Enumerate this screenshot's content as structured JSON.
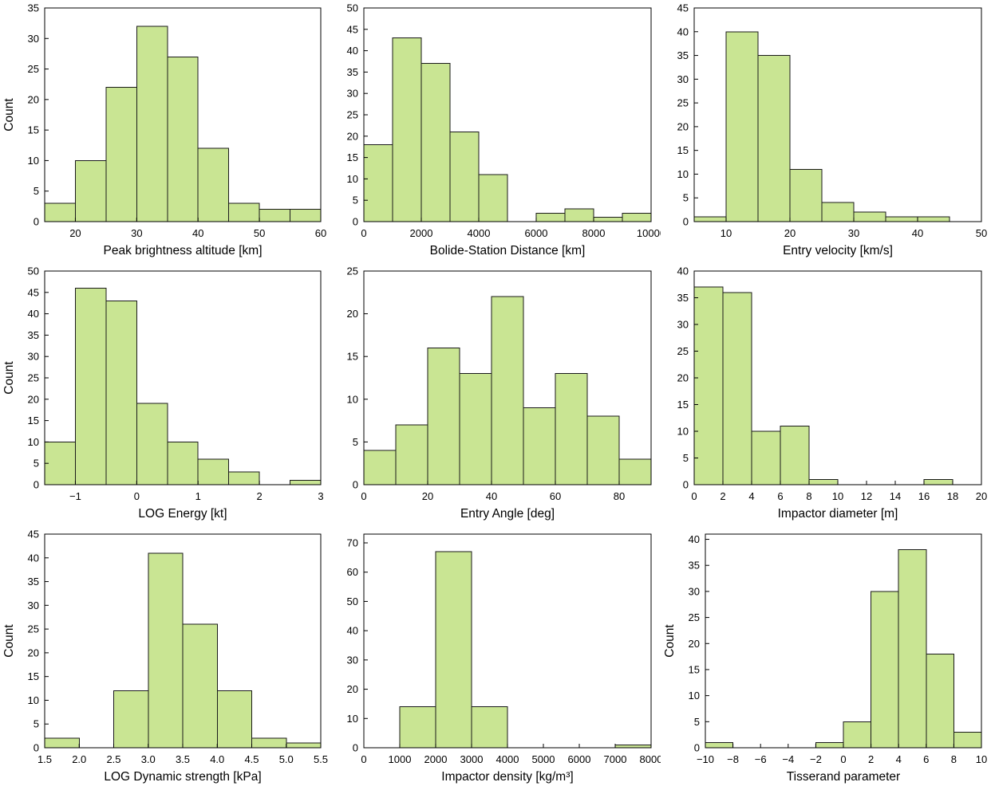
{
  "style": {
    "background": "#ffffff",
    "bar_fill": "#c9e593",
    "bar_stroke": "#1a1a1a",
    "axis_color": "#000000",
    "text_color": "#000000"
  },
  "chart_data": [
    {
      "type": "bar",
      "name": "peak-brightness-altitude",
      "title": "",
      "xlabel": "Peak brightness altitude [km]",
      "ylabel": "Count",
      "bin_start": 15,
      "bin_width": 5,
      "values": [
        3,
        10,
        22,
        32,
        27,
        12,
        3,
        2,
        2
      ],
      "xlim": [
        15,
        60
      ],
      "ylim": [
        0,
        35
      ],
      "xticks": [
        20,
        30,
        40,
        50,
        60
      ],
      "xtick_labels": [
        "20",
        "30",
        "40",
        "50",
        "60"
      ],
      "yticks": [
        0,
        5,
        10,
        15,
        20,
        25,
        30,
        35
      ],
      "grid": false,
      "legend": false
    },
    {
      "type": "bar",
      "name": "bolide-station-distance",
      "title": "",
      "xlabel": "Bolide-Station Distance [km]",
      "ylabel": "",
      "bin_start": 0,
      "bin_width": 1000,
      "values": [
        18,
        43,
        37,
        21,
        11,
        0,
        2,
        3,
        1,
        2
      ],
      "xlim": [
        0,
        10000
      ],
      "ylim": [
        0,
        50
      ],
      "xticks": [
        0,
        2000,
        4000,
        6000,
        8000,
        10000
      ],
      "xtick_labels": [
        "0",
        "2000",
        "4000",
        "6000",
        "8000",
        "10000"
      ],
      "yticks": [
        0,
        5,
        10,
        15,
        20,
        25,
        30,
        35,
        40,
        45,
        50
      ],
      "grid": false,
      "legend": false
    },
    {
      "type": "bar",
      "name": "entry-velocity",
      "title": "",
      "xlabel": "Entry velocity [km/s]",
      "ylabel": "",
      "bin_start": 5,
      "bin_width": 5,
      "values": [
        1,
        40,
        35,
        11,
        4,
        2,
        1,
        1,
        0
      ],
      "xlim": [
        5,
        50
      ],
      "ylim": [
        0,
        45
      ],
      "xticks": [
        10,
        20,
        30,
        40,
        50
      ],
      "xtick_labels": [
        "10",
        "20",
        "30",
        "40",
        "50"
      ],
      "yticks": [
        0,
        5,
        10,
        15,
        20,
        25,
        30,
        35,
        40,
        45
      ],
      "grid": false,
      "legend": false
    },
    {
      "type": "bar",
      "name": "log-energy",
      "title": "",
      "xlabel": "LOG Energy [kt]",
      "ylabel": "Count",
      "bin_start": -1.5,
      "bin_width": 0.5,
      "values": [
        10,
        46,
        43,
        19,
        10,
        6,
        3,
        0,
        1
      ],
      "xlim": [
        -1.5,
        3
      ],
      "ylim": [
        0,
        50
      ],
      "xticks": [
        -1,
        0,
        1,
        2,
        3
      ],
      "xtick_labels": [
        "−1",
        "0",
        "1",
        "2",
        "3"
      ],
      "yticks": [
        0,
        5,
        10,
        15,
        20,
        25,
        30,
        35,
        40,
        45,
        50
      ],
      "grid": false,
      "legend": false
    },
    {
      "type": "bar",
      "name": "entry-angle",
      "title": "",
      "xlabel": "Entry Angle [deg]",
      "ylabel": "",
      "bin_start": 0,
      "bin_width": 10,
      "values": [
        4,
        7,
        16,
        13,
        22,
        9,
        13,
        8,
        3
      ],
      "xlim": [
        0,
        90
      ],
      "ylim": [
        0,
        25
      ],
      "xticks": [
        0,
        20,
        40,
        60,
        80
      ],
      "xtick_labels": [
        "0",
        "20",
        "40",
        "60",
        "80"
      ],
      "yticks": [
        0,
        5,
        10,
        15,
        20,
        25
      ],
      "grid": false,
      "legend": false
    },
    {
      "type": "bar",
      "name": "impactor-diameter",
      "title": "",
      "xlabel": "Impactor diameter [m]",
      "ylabel": "",
      "bin_start": 0,
      "bin_width": 2,
      "values": [
        37,
        36,
        10,
        11,
        1,
        0,
        0,
        0,
        1,
        0
      ],
      "xlim": [
        0,
        20
      ],
      "ylim": [
        0,
        40
      ],
      "xticks": [
        0,
        2,
        4,
        6,
        8,
        10,
        12,
        14,
        16,
        18,
        20
      ],
      "xtick_labels": [
        "0",
        "2",
        "4",
        "6",
        "8",
        "10",
        "12",
        "14",
        "16",
        "18",
        "20"
      ],
      "yticks": [
        0,
        5,
        10,
        15,
        20,
        25,
        30,
        35,
        40
      ],
      "grid": false,
      "legend": false
    },
    {
      "type": "bar",
      "name": "log-dynamic-strength",
      "title": "",
      "xlabel": "LOG Dynamic strength [kPa]",
      "ylabel": "Count",
      "bin_start": 1.5,
      "bin_width": 0.5,
      "values": [
        2,
        0,
        12,
        41,
        26,
        12,
        2,
        1
      ],
      "xlim": [
        1.5,
        5.5
      ],
      "ylim": [
        0,
        45
      ],
      "xticks": [
        1.5,
        2,
        2.5,
        3,
        3.5,
        4,
        4.5,
        5,
        5.5
      ],
      "xtick_labels": [
        "1.5",
        "2.0",
        "2.5",
        "3.0",
        "3.5",
        "4.0",
        "4.5",
        "5.0",
        "5.5"
      ],
      "yticks": [
        0,
        5,
        10,
        15,
        20,
        25,
        30,
        35,
        40,
        45
      ],
      "grid": false,
      "legend": false
    },
    {
      "type": "bar",
      "name": "impactor-density",
      "title": "",
      "xlabel": "Impactor density [kg/m³]",
      "ylabel": "",
      "bin_start": 0,
      "bin_width": 1000,
      "values": [
        0,
        14,
        67,
        14,
        0,
        0,
        0,
        1
      ],
      "xlim": [
        0,
        8000
      ],
      "ylim": [
        0,
        73
      ],
      "xticks": [
        0,
        1000,
        2000,
        3000,
        4000,
        5000,
        6000,
        7000,
        8000
      ],
      "xtick_labels": [
        "0",
        "1000",
        "2000",
        "3000",
        "4000",
        "5000",
        "6000",
        "7000",
        "8000"
      ],
      "yticks": [
        0,
        10,
        20,
        30,
        40,
        50,
        60,
        70
      ],
      "grid": false,
      "legend": false
    },
    {
      "type": "bar",
      "name": "tisserand-parameter",
      "title": "",
      "xlabel": "Tisserand parameter",
      "ylabel": "Count",
      "bin_start": -10,
      "bin_width": 2,
      "values": [
        1,
        0,
        0,
        0,
        1,
        5,
        30,
        38,
        18,
        3
      ],
      "xlim": [
        -10,
        10
      ],
      "ylim": [
        0,
        41
      ],
      "xticks": [
        -10,
        -8,
        -6,
        -4,
        -2,
        0,
        2,
        4,
        6,
        8,
        10
      ],
      "xtick_labels": [
        "−10",
        "−8",
        "−6",
        "−4",
        "−2",
        "0",
        "2",
        "4",
        "6",
        "8",
        "10"
      ],
      "yticks": [
        0,
        5,
        10,
        15,
        20,
        25,
        30,
        35,
        40
      ],
      "grid": false,
      "legend": false
    }
  ]
}
